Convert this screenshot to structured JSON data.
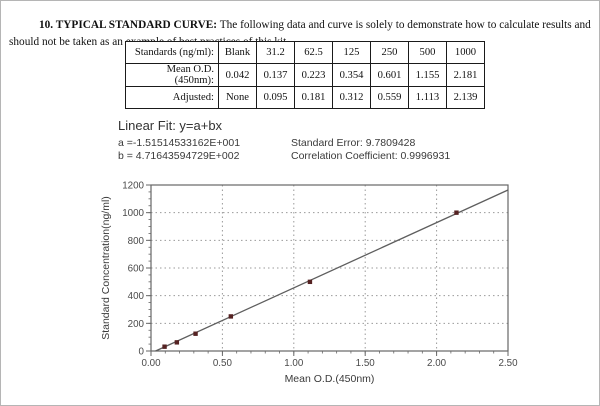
{
  "header": {
    "title_bold": "10. TYPICAL STANDARD CURVE:",
    "title_rest": " The following data and curve is solely to demonstrate how to calculate results and should not be taken as an example of best practices of this kit."
  },
  "table": {
    "rows": [
      {
        "label": "Standards (ng/ml):",
        "cells": [
          "Blank",
          "31.2",
          "62.5",
          "125",
          "250",
          "500",
          "1000"
        ]
      },
      {
        "label": "Mean O.D.(450nm):",
        "cells": [
          "0.042",
          "0.137",
          "0.223",
          "0.354",
          "0.601",
          "1.155",
          "2.181"
        ]
      },
      {
        "label": "Adjusted:",
        "cells": [
          "None",
          "0.095",
          "0.181",
          "0.312",
          "0.559",
          "1.113",
          "2.139"
        ]
      }
    ]
  },
  "linear_fit": {
    "heading": "Linear Fit: y=a+bx",
    "a_label": "a =-1.51514533162E+001",
    "b_label": "b = 4.71643594729E+002",
    "standard_error": "Standard Error: 9.7809428",
    "correlation": "Correlation Coefficient: 0.9996931"
  },
  "chart_data": {
    "type": "scatter",
    "x": [
      0.095,
      0.181,
      0.312,
      0.559,
      1.113,
      2.139
    ],
    "y": [
      31.2,
      62.5,
      125,
      250,
      500,
      1000
    ],
    "fit": {
      "a": -15.1514533162,
      "b": 471.643594729
    },
    "xlabel": "Mean O.D.(450nm)",
    "ylabel": "Standard Concentration(ng/ml)",
    "xlim": [
      0,
      2.5
    ],
    "ylim": [
      0,
      1200
    ],
    "x_major": 0.5,
    "x_minor": 0.1,
    "y_major": 200,
    "y_minor": 50,
    "x_tick_labels": [
      "0.00",
      "0.50",
      "1.00",
      "1.50",
      "2.00",
      "2.50"
    ],
    "y_tick_labels": [
      "0",
      "200",
      "400",
      "600",
      "800",
      "1000",
      "1200"
    ],
    "grid": "dotted",
    "legend": "none",
    "grid_color": "#9a9a9a",
    "frame_color": "#666666",
    "line_color": "#5e5e5e",
    "marker_color": "#552222"
  }
}
